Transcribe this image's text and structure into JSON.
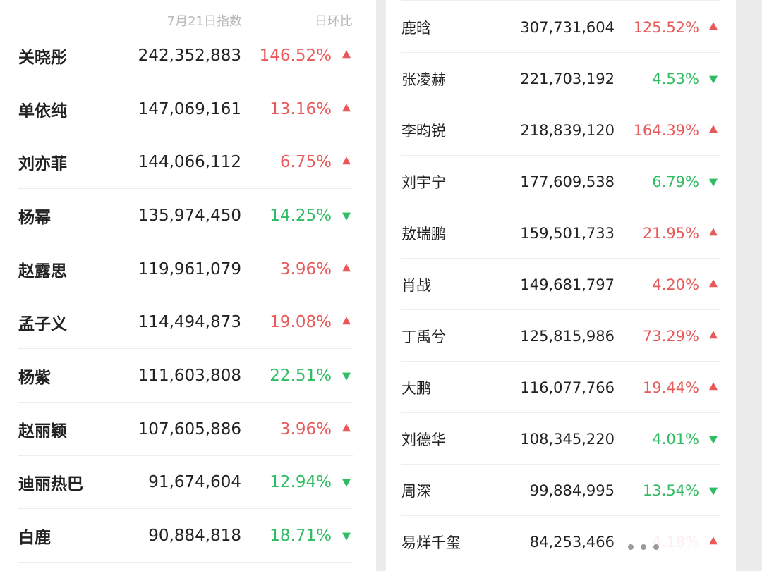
{
  "left": {
    "header": {
      "date_label": "7月21日指数",
      "change_label": "日环比"
    },
    "rows": [
      {
        "name": "关晓彤",
        "value": "242,352,883",
        "change": "146.52%",
        "dir": "up"
      },
      {
        "name": "单依纯",
        "value": "147,069,161",
        "change": "13.16%",
        "dir": "up"
      },
      {
        "name": "刘亦菲",
        "value": "144,066,112",
        "change": "6.75%",
        "dir": "up"
      },
      {
        "name": "杨幂",
        "value": "135,974,450",
        "change": "14.25%",
        "dir": "down"
      },
      {
        "name": "赵露思",
        "value": "119,961,079",
        "change": "3.96%",
        "dir": "up"
      },
      {
        "name": "孟子义",
        "value": "114,494,873",
        "change": "19.08%",
        "dir": "up"
      },
      {
        "name": "杨紫",
        "value": "111,603,808",
        "change": "22.51%",
        "dir": "down"
      },
      {
        "name": "赵丽颖",
        "value": "107,605,886",
        "change": "3.96%",
        "dir": "up"
      },
      {
        "name": "迪丽热巴",
        "value": "91,674,604",
        "change": "12.94%",
        "dir": "down"
      },
      {
        "name": "白鹿",
        "value": "90,884,818",
        "change": "18.71%",
        "dir": "down"
      }
    ]
  },
  "right": {
    "rows": [
      {
        "name": "鹿晗",
        "value": "307,731,604",
        "change": "125.52%",
        "dir": "up"
      },
      {
        "name": "张凌赫",
        "value": "221,703,192",
        "change": "4.53%",
        "dir": "down"
      },
      {
        "name": "李昀锐",
        "value": "218,839,120",
        "change": "164.39%",
        "dir": "up"
      },
      {
        "name": "刘宇宁",
        "value": "177,609,538",
        "change": "6.79%",
        "dir": "down"
      },
      {
        "name": "敖瑞鹏",
        "value": "159,501,733",
        "change": "21.95%",
        "dir": "up"
      },
      {
        "name": "肖战",
        "value": "149,681,797",
        "change": "4.20%",
        "dir": "up"
      },
      {
        "name": "丁禹兮",
        "value": "125,815,986",
        "change": "73.29%",
        "dir": "up"
      },
      {
        "name": "大鹏",
        "value": "116,077,766",
        "change": "19.44%",
        "dir": "up"
      },
      {
        "name": "刘德华",
        "value": "108,345,220",
        "change": "4.01%",
        "dir": "down"
      },
      {
        "name": "周深",
        "value": "99,884,995",
        "change": "13.54%",
        "dir": "down"
      },
      {
        "name": "易烊千玺",
        "value": "84,253,466",
        "change": "4.18%",
        "dir": "up"
      }
    ]
  },
  "colors": {
    "up": "#e85a5a",
    "down": "#2fbc62",
    "text": "#222222",
    "header": "#b9b9b9"
  },
  "icons": {
    "up": "triangle-up-icon",
    "down": "triangle-down-icon"
  }
}
